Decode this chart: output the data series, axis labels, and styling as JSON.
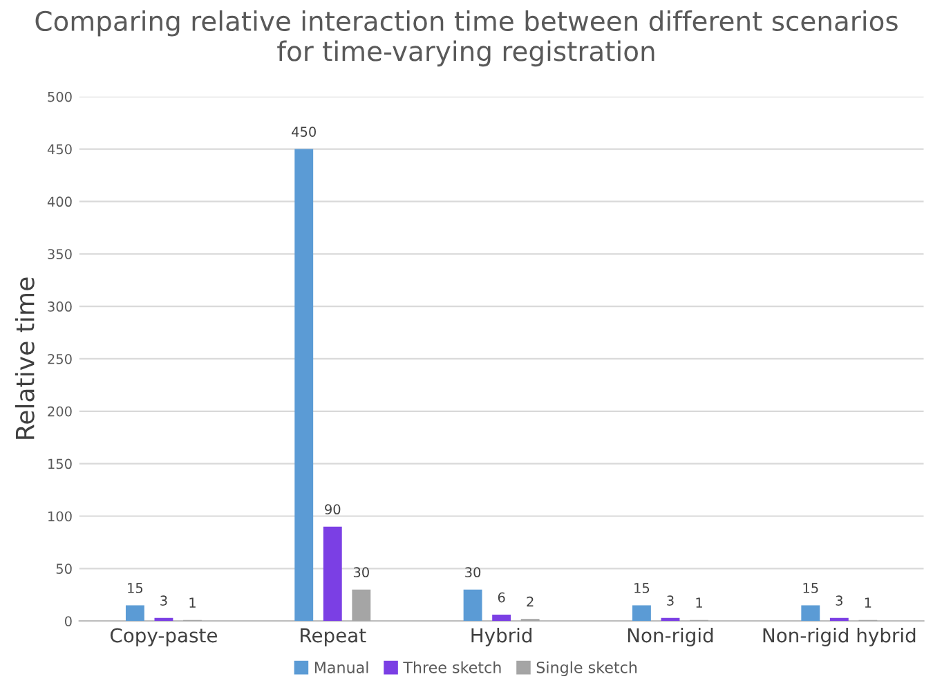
{
  "chart_data": {
    "type": "bar",
    "title": "Comparing relative interaction time between different scenarios\nfor time-varying registration",
    "ylabel": "Relative time",
    "categories": [
      "Copy-paste",
      "Repeat",
      "Hybrid",
      "Non-rigid",
      "Non-rigid hybrid"
    ],
    "series": [
      {
        "name": "Manual",
        "color": "#5b9bd5",
        "values": [
          15,
          450,
          30,
          15,
          15
        ]
      },
      {
        "name": "Three sketch",
        "color": "#7b3fe4",
        "values": [
          3,
          90,
          6,
          3,
          3
        ]
      },
      {
        "name": "Single sketch",
        "color": "#a5a5a5",
        "values": [
          1,
          30,
          2,
          1,
          1
        ]
      }
    ],
    "ylim": [
      0,
      500
    ],
    "yticks": [
      0,
      50,
      100,
      150,
      200,
      250,
      300,
      350,
      400,
      450,
      500
    ],
    "grid": "y",
    "legend": "bottom",
    "data_labels": true
  }
}
